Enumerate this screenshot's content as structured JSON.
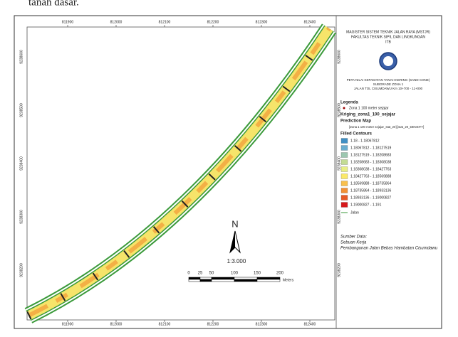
{
  "caption": "tanah dasar.",
  "map": {
    "top_ticks": [
      "811900",
      "812000",
      "812100",
      "812200",
      "812300",
      "812400"
    ],
    "bottom_ticks": [
      "811900",
      "812000",
      "812100",
      "812200",
      "812300",
      "812400"
    ],
    "left_ticks": [
      "9238600",
      "9238500",
      "9238400",
      "9238300",
      "9238200"
    ],
    "right_ticks": [
      "9238600",
      "9238500",
      "9238400",
      "9238300",
      "9238200"
    ],
    "north": "N",
    "scale": "1:3.000",
    "scalebar": {
      "labels": [
        "0",
        "25",
        "50",
        "100",
        "150",
        "200"
      ],
      "unit": "Meters"
    }
  },
  "panel": {
    "institution": [
      "MAGISTER SISTEM TEKNIK JALAN RAYA (MSTJR)",
      "FAKULTAS TEKNIK SIPIL DAN LINGKUNGAN",
      "ITB"
    ],
    "map_title": [
      "PETA NILAI KEPADATAN TANAH KERING (SAND CONE)",
      "SUBGRADE ZONA 1",
      "JALAN TOL CISUMDAWU Km 10+700 - 11+000"
    ],
    "legend_title": "Legenda",
    "point_layer": "Zona 1 100 meter sejajar",
    "kriging_layer": "Kriging_zona1_100_sejajar",
    "prediction": "Prediction Map",
    "field": "[Zona 1 100 meter sejajar_stat_20].[stat_20_DENSITY]",
    "contours_title": "Filled Contours",
    "contours": [
      {
        "label": "1.18 - 1.18067812",
        "color": "#3f8fc4"
      },
      {
        "label": "1.18067812 - 1.18127519",
        "color": "#6aaed0"
      },
      {
        "label": "1.18127519 - 1.18208683",
        "color": "#9cc7b0"
      },
      {
        "label": "1.18208683 - 1.18308038",
        "color": "#c3dc95"
      },
      {
        "label": "1.18308038 - 1.18427763",
        "color": "#e8ef86"
      },
      {
        "label": "1.18427763 - 1.18569888",
        "color": "#fbe96a"
      },
      {
        "label": "1.18569888 - 1.18735864",
        "color": "#f9c04c"
      },
      {
        "label": "1.18735864 - 1.18933136",
        "color": "#f39134"
      },
      {
        "label": "1.18933136 - 1.19000827",
        "color": "#e85a25"
      },
      {
        "label": "1.19000827 - 1.191",
        "color": "#d7191c"
      }
    ],
    "road": "Jalan",
    "source": [
      "Sumber Data:",
      "Sebuan Kerja",
      "Pembangunan Jalan Bebas Hambatan Cisumdawu"
    ]
  }
}
